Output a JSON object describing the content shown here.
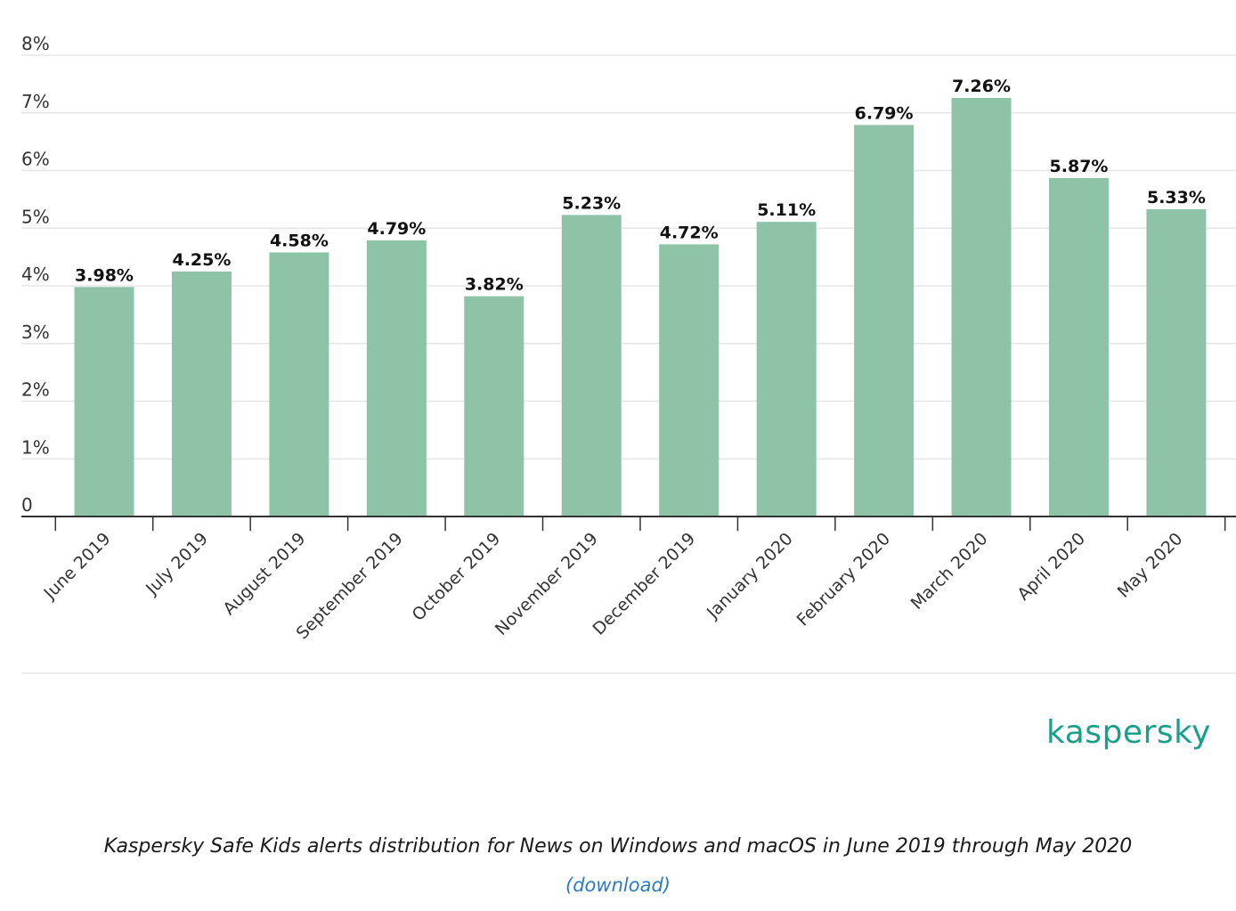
{
  "colors": {
    "bar": "#8fc3a8",
    "grid": "#e6e6e6",
    "axis": "#333333",
    "brand": "#1aa08a",
    "link": "#2b7bc2"
  },
  "logo": {
    "text": "kaspersky"
  },
  "caption": {
    "text": "Kaspersky Safe Kids alerts distribution for News on Windows and macOS in June 2019 through May 2020",
    "link_label": "(download)"
  },
  "chart_data": {
    "type": "bar",
    "categories": [
      "June 2019",
      "July 2019",
      "August 2019",
      "September 2019",
      "October 2019",
      "November 2019",
      "December 2019",
      "January 2020",
      "February 2020",
      "March 2020",
      "April 2020",
      "May 2020"
    ],
    "values": [
      3.98,
      4.25,
      4.58,
      4.79,
      3.82,
      5.23,
      4.72,
      5.11,
      6.79,
      7.26,
      5.87,
      5.33
    ],
    "data_labels": [
      "3.98%",
      "4.25%",
      "4.58%",
      "4.79%",
      "3.82%",
      "5.23%",
      "4.72%",
      "5.11%",
      "6.79%",
      "7.26%",
      "5.87%",
      "5.33%"
    ],
    "yticks": [
      0,
      1,
      2,
      3,
      4,
      5,
      6,
      7,
      8
    ],
    "ytick_labels": [
      "0",
      "1%",
      "2%",
      "3%",
      "4%",
      "5%",
      "6%",
      "7%",
      "8%"
    ],
    "ylim": [
      0,
      8
    ],
    "grid": true,
    "legend": "none",
    "xtick_rotation": "diagonal"
  }
}
